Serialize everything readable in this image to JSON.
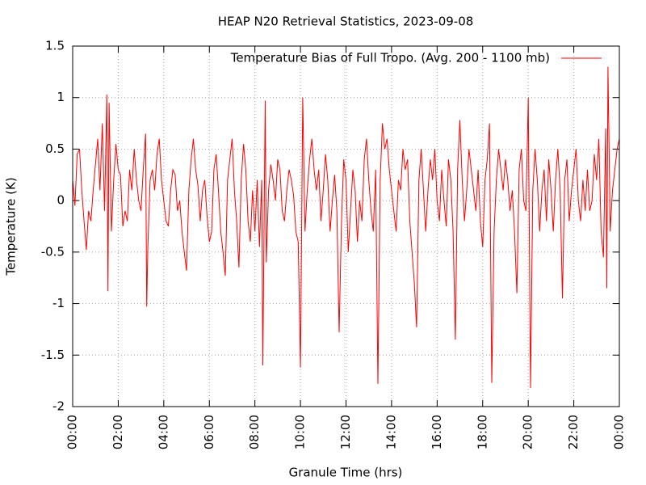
{
  "chart_data": {
    "type": "line",
    "title": "HEAP N20 Retrieval Statistics, 2023-09-08",
    "x_label": "Granule Time (hrs)",
    "y_label": "Temperature (K)",
    "legend": "top-right",
    "grid": true,
    "xlim": [
      0,
      24
    ],
    "ylim": [
      -2,
      1.5
    ],
    "yticks": [
      -2,
      -1.5,
      -1,
      -0.5,
      0,
      0.5,
      1,
      1.5
    ],
    "xticks": [
      {
        "value": 0,
        "label": "00:00"
      },
      {
        "value": 2,
        "label": "02:00"
      },
      {
        "value": 4,
        "label": "04:00"
      },
      {
        "value": 6,
        "label": "06:00"
      },
      {
        "value": 8,
        "label": "08:00"
      },
      {
        "value": 10,
        "label": "10:00"
      },
      {
        "value": 12,
        "label": "12:00"
      },
      {
        "value": 14,
        "label": "14:00"
      },
      {
        "value": 16,
        "label": "16:00"
      },
      {
        "value": 18,
        "label": "18:00"
      },
      {
        "value": 20,
        "label": "20:00"
      },
      {
        "value": 22,
        "label": "22:00"
      },
      {
        "value": 24,
        "label": "00:00"
      }
    ],
    "x": [
      0.0,
      0.1,
      0.2,
      0.3,
      0.4,
      0.5,
      0.6,
      0.7,
      0.8,
      0.9,
      1.0,
      1.1,
      1.2,
      1.3,
      1.4,
      1.5,
      1.55,
      1.6,
      1.7,
      1.8,
      1.9,
      2.0,
      2.1,
      2.2,
      2.3,
      2.4,
      2.5,
      2.6,
      2.7,
      2.8,
      2.9,
      3.0,
      3.1,
      3.2,
      3.25,
      3.3,
      3.4,
      3.5,
      3.6,
      3.7,
      3.8,
      3.9,
      4.0,
      4.1,
      4.2,
      4.3,
      4.4,
      4.5,
      4.6,
      4.7,
      4.8,
      4.9,
      5.0,
      5.1,
      5.2,
      5.3,
      5.4,
      5.5,
      5.6,
      5.7,
      5.8,
      5.9,
      6.0,
      6.1,
      6.2,
      6.3,
      6.4,
      6.5,
      6.6,
      6.7,
      6.8,
      6.9,
      7.0,
      7.1,
      7.2,
      7.3,
      7.4,
      7.5,
      7.6,
      7.7,
      7.8,
      7.9,
      8.0,
      8.1,
      8.2,
      8.3,
      8.35,
      8.45,
      8.5,
      8.6,
      8.7,
      8.8,
      8.9,
      9.0,
      9.1,
      9.2,
      9.3,
      9.4,
      9.5,
      9.6,
      9.7,
      9.8,
      9.9,
      10.0,
      10.1,
      10.2,
      10.3,
      10.4,
      10.5,
      10.6,
      10.7,
      10.8,
      10.9,
      11.0,
      11.1,
      11.2,
      11.3,
      11.4,
      11.5,
      11.6,
      11.7,
      11.8,
      11.9,
      12.0,
      12.1,
      12.2,
      12.3,
      12.4,
      12.5,
      12.6,
      12.7,
      12.8,
      12.9,
      13.0,
      13.1,
      13.2,
      13.3,
      13.4,
      13.5,
      13.6,
      13.7,
      13.8,
      13.9,
      14.0,
      14.1,
      14.2,
      14.3,
      14.4,
      14.5,
      14.6,
      14.7,
      14.8,
      14.9,
      15.0,
      15.1,
      15.2,
      15.3,
      15.4,
      15.5,
      15.6,
      15.7,
      15.8,
      15.9,
      16.0,
      16.1,
      16.2,
      16.3,
      16.4,
      16.5,
      16.6,
      16.7,
      16.8,
      16.9,
      17.0,
      17.1,
      17.2,
      17.3,
      17.4,
      17.5,
      17.6,
      17.7,
      17.8,
      17.9,
      18.0,
      18.1,
      18.2,
      18.3,
      18.4,
      18.5,
      18.6,
      18.7,
      18.8,
      18.9,
      19.0,
      19.1,
      19.2,
      19.3,
      19.4,
      19.5,
      19.6,
      19.7,
      19.8,
      19.9,
      20.0,
      20.1,
      20.2,
      20.3,
      20.4,
      20.5,
      20.6,
      20.7,
      20.8,
      20.9,
      21.0,
      21.1,
      21.2,
      21.3,
      21.4,
      21.5,
      21.6,
      21.7,
      21.8,
      21.9,
      22.0,
      22.1,
      22.2,
      22.3,
      22.4,
      22.5,
      22.6,
      22.7,
      22.8,
      22.9,
      23.0,
      23.1,
      23.2,
      23.3,
      23.4,
      23.45,
      23.5,
      23.6,
      23.7,
      23.8,
      23.9,
      24.0
    ],
    "series": [
      {
        "name": "Temperature Bias of Full Tropo. (Avg. 200 - 1100 mb)",
        "color": "#ff0000",
        "values": [
          0.2,
          -0.05,
          0.45,
          0.5,
          0.1,
          -0.2,
          -0.48,
          -0.1,
          -0.2,
          0.1,
          0.35,
          0.6,
          0.1,
          0.75,
          -0.1,
          1.03,
          -0.88,
          0.95,
          -0.3,
          0.2,
          0.55,
          0.3,
          0.25,
          -0.25,
          -0.1,
          -0.2,
          0.3,
          0.1,
          0.5,
          0.2,
          0.0,
          -0.1,
          0.3,
          0.65,
          -1.03,
          -0.45,
          0.2,
          0.3,
          0.1,
          0.45,
          0.6,
          0.2,
          0.0,
          -0.2,
          -0.25,
          0.1,
          0.3,
          0.25,
          -0.1,
          0.0,
          -0.3,
          -0.5,
          -0.68,
          0.1,
          0.4,
          0.6,
          0.3,
          0.15,
          -0.2,
          0.1,
          0.2,
          -0.15,
          -0.4,
          -0.3,
          0.3,
          0.45,
          0.1,
          -0.3,
          -0.5,
          -0.73,
          0.2,
          0.4,
          0.6,
          0.1,
          -0.2,
          -0.65,
          0.2,
          0.55,
          0.3,
          -0.2,
          -0.4,
          0.1,
          -0.3,
          0.2,
          -0.45,
          0.2,
          -1.6,
          0.97,
          -0.6,
          0.1,
          0.35,
          0.2,
          0.0,
          0.4,
          0.3,
          -0.1,
          -0.2,
          0.1,
          0.3,
          0.2,
          0.05,
          -0.3,
          -0.4,
          -1.62,
          1.0,
          -0.3,
          0.1,
          0.4,
          0.6,
          0.3,
          0.1,
          0.3,
          -0.2,
          0.1,
          0.45,
          0.2,
          -0.3,
          0.0,
          0.25,
          -0.1,
          -1.28,
          -0.2,
          0.4,
          0.2,
          -0.5,
          -0.1,
          0.3,
          0.1,
          -0.4,
          0.0,
          -0.2,
          0.4,
          0.6,
          0.2,
          -0.1,
          -0.3,
          0.3,
          -1.78,
          0.2,
          0.75,
          0.5,
          0.6,
          0.3,
          0.1,
          -0.1,
          -0.3,
          0.2,
          0.1,
          0.5,
          0.3,
          0.4,
          -0.2,
          -0.5,
          -0.8,
          -1.23,
          0.2,
          0.5,
          0.1,
          -0.3,
          0.1,
          0.4,
          0.2,
          0.5,
          0.0,
          -0.2,
          0.3,
          0.0,
          -0.25,
          0.4,
          0.2,
          -0.3,
          -1.35,
          0.3,
          0.78,
          0.2,
          -0.2,
          0.1,
          0.5,
          0.3,
          0.1,
          -0.1,
          0.3,
          -0.2,
          -0.45,
          0.2,
          0.4,
          0.75,
          -1.77,
          -0.3,
          0.2,
          0.5,
          0.3,
          0.1,
          0.4,
          0.2,
          -0.1,
          0.1,
          -0.3,
          -0.9,
          0.3,
          0.5,
          0.0,
          -0.1,
          1.0,
          -1.82,
          0.1,
          0.5,
          0.2,
          -0.3,
          0.1,
          0.3,
          -0.2,
          0.4,
          0.1,
          -0.3,
          0.2,
          0.5,
          0.1,
          -0.95,
          0.2,
          0.4,
          -0.2,
          0.1,
          0.3,
          0.5,
          0.0,
          -0.2,
          0.2,
          -0.1,
          0.3,
          -0.1,
          0.0,
          0.45,
          0.2,
          0.6,
          -0.3,
          -0.55,
          0.7,
          -0.85,
          1.3,
          -0.3,
          0.1,
          0.3,
          0.5,
          0.6
        ]
      }
    ]
  }
}
